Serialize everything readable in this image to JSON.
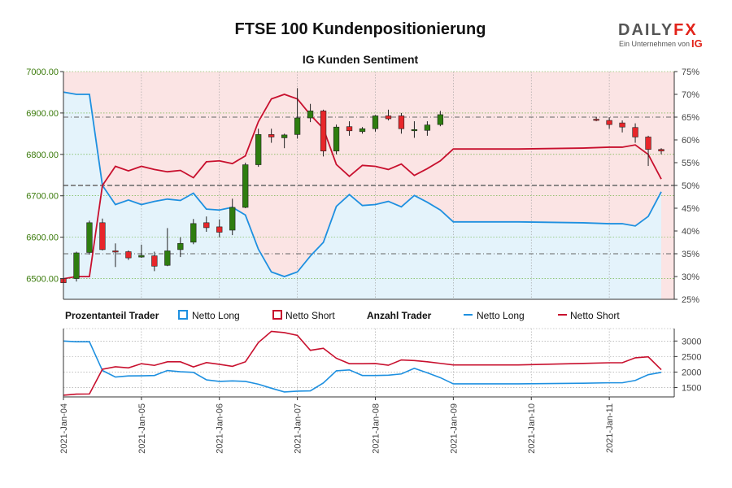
{
  "title": "FTSE 100 Kundenpositionierung",
  "subtitle": "IG Kunden Sentiment",
  "logo": {
    "brand_left": "DAILY",
    "brand_right": "FX",
    "tagline": "Ein Unternehmen von",
    "ig": "IG"
  },
  "legend": {
    "percent_heading": "Prozentanteil Trader",
    "count_heading": "Anzahl Trader",
    "netto_long": "Netto Long",
    "netto_short": "Netto Short"
  },
  "colors": {
    "long": "#1e90e0",
    "short": "#c8102e",
    "candle_up": "#2e7d0f",
    "candle_down": "#e8262a",
    "long_fill": "#e4f3fb",
    "short_fill": "#fbe4e4"
  },
  "chart_data": [
    {
      "type": "candlestick",
      "price_axis": {
        "ticks": [
          "6500.00",
          "6600.00",
          "6700.00",
          "6800.00",
          "6900.00",
          "7000.00"
        ],
        "range": [
          6450,
          7000
        ]
      },
      "percent_axis": {
        "ticks": [
          "25%",
          "30%",
          "35%",
          "40%",
          "45%",
          "50%",
          "55%",
          "60%",
          "65%",
          "70%",
          "75%"
        ],
        "range": [
          25,
          75
        ]
      },
      "reference_lines_percent": [
        50,
        65,
        35
      ],
      "x_range": [
        0,
        47
      ],
      "x_ticks": [
        {
          "label": "2021-Jan-04",
          "x": 0
        },
        {
          "label": "2021-Jan-05",
          "x": 6
        },
        {
          "label": "2021-Jan-06",
          "x": 12
        },
        {
          "label": "2021-Jan-07",
          "x": 18
        },
        {
          "label": "2021-Jan-08",
          "x": 24
        },
        {
          "label": "2021-Jan-09",
          "x": 30
        },
        {
          "label": "2021-Jan-10",
          "x": 36
        },
        {
          "label": "2021-Jan-11",
          "x": 42
        }
      ],
      "candles": [
        {
          "x": 0,
          "o": 6500,
          "h": 6505,
          "l": 6455,
          "c": 6490
        },
        {
          "x": 1,
          "o": 6500,
          "h": 6565,
          "l": 6493,
          "c": 6562
        },
        {
          "x": 2,
          "o": 6563,
          "h": 6640,
          "l": 6558,
          "c": 6635
        },
        {
          "x": 3,
          "o": 6635,
          "h": 6645,
          "l": 6568,
          "c": 6570
        },
        {
          "x": 4,
          "o": 6567,
          "h": 6585,
          "l": 6528,
          "c": 6566
        },
        {
          "x": 5,
          "o": 6565,
          "h": 6568,
          "l": 6545,
          "c": 6550
        },
        {
          "x": 6,
          "o": 6552,
          "h": 6582,
          "l": 6550,
          "c": 6556
        },
        {
          "x": 7,
          "o": 6555,
          "h": 6565,
          "l": 6518,
          "c": 6530
        },
        {
          "x": 8,
          "o": 6532,
          "h": 6622,
          "l": 6530,
          "c": 6567
        },
        {
          "x": 9,
          "o": 6570,
          "h": 6600,
          "l": 6552,
          "c": 6585
        },
        {
          "x": 10,
          "o": 6588,
          "h": 6644,
          "l": 6583,
          "c": 6633
        },
        {
          "x": 11,
          "o": 6635,
          "h": 6650,
          "l": 6613,
          "c": 6623
        },
        {
          "x": 12,
          "o": 6625,
          "h": 6643,
          "l": 6600,
          "c": 6612
        },
        {
          "x": 13,
          "o": 6617,
          "h": 6693,
          "l": 6605,
          "c": 6672
        },
        {
          "x": 14,
          "o": 6672,
          "h": 6780,
          "l": 6670,
          "c": 6775
        },
        {
          "x": 15,
          "o": 6775,
          "h": 6862,
          "l": 6770,
          "c": 6848
        },
        {
          "x": 16,
          "o": 6848,
          "h": 6862,
          "l": 6828,
          "c": 6842
        },
        {
          "x": 17,
          "o": 6840,
          "h": 6850,
          "l": 6815,
          "c": 6847
        },
        {
          "x": 18,
          "o": 6848,
          "h": 6960,
          "l": 6838,
          "c": 6888
        },
        {
          "x": 19,
          "o": 6888,
          "h": 6922,
          "l": 6878,
          "c": 6905
        },
        {
          "x": 20,
          "o": 6905,
          "h": 6908,
          "l": 6795,
          "c": 6808
        },
        {
          "x": 21,
          "o": 6808,
          "h": 6872,
          "l": 6800,
          "c": 6866
        },
        {
          "x": 22,
          "o": 6867,
          "h": 6880,
          "l": 6845,
          "c": 6857
        },
        {
          "x": 23,
          "o": 6855,
          "h": 6866,
          "l": 6850,
          "c": 6862
        },
        {
          "x": 24,
          "o": 6862,
          "h": 6895,
          "l": 6855,
          "c": 6893
        },
        {
          "x": 25,
          "o": 6893,
          "h": 6908,
          "l": 6882,
          "c": 6886
        },
        {
          "x": 26,
          "o": 6893,
          "h": 6900,
          "l": 6850,
          "c": 6862
        },
        {
          "x": 27,
          "o": 6860,
          "h": 6880,
          "l": 6840,
          "c": 6860
        },
        {
          "x": 28,
          "o": 6858,
          "h": 6880,
          "l": 6845,
          "c": 6871
        },
        {
          "x": 29,
          "o": 6872,
          "h": 6905,
          "l": 6868,
          "c": 6896
        },
        {
          "x": 41,
          "o": 6885,
          "h": 6890,
          "l": 6880,
          "c": 6884
        },
        {
          "x": 42,
          "o": 6882,
          "h": 6890,
          "l": 6862,
          "c": 6872
        },
        {
          "x": 43,
          "o": 6876,
          "h": 6882,
          "l": 6853,
          "c": 6866
        },
        {
          "x": 44,
          "o": 6865,
          "h": 6875,
          "l": 6828,
          "c": 6842
        },
        {
          "x": 45,
          "o": 6842,
          "h": 6845,
          "l": 6772,
          "c": 6812
        },
        {
          "x": 46,
          "o": 6812,
          "h": 6815,
          "l": 6800,
          "c": 6808
        }
      ],
      "long_percent": {
        "x": [
          0,
          1,
          2,
          3,
          4,
          5,
          6,
          7,
          8,
          9,
          10,
          11,
          12,
          13,
          14,
          15,
          16,
          17,
          18,
          19,
          20,
          21,
          22,
          23,
          24,
          25,
          26,
          27,
          28,
          29,
          30,
          35,
          40,
          42,
          43,
          44,
          45,
          46
        ],
        "y": [
          70.5,
          70,
          70,
          50,
          45.8,
          46.8,
          45.8,
          46.5,
          47,
          46.7,
          48.3,
          44.8,
          44.6,
          45.2,
          43.5,
          36,
          31,
          30,
          31,
          34.5,
          37.5,
          45.4,
          48,
          45.6,
          45.8,
          46.5,
          45.3,
          47.8,
          46.3,
          44.6,
          42,
          42,
          41.8,
          41.6,
          41.6,
          41.1,
          43.2,
          48.6
        ]
      },
      "short_percent_derived": "100 - long_percent"
    },
    {
      "type": "line",
      "y_ticks": [
        "1500",
        "2000",
        "2500",
        "3000"
      ],
      "y_range": [
        1200,
        3400
      ],
      "x": [
        0,
        1,
        2,
        3,
        4,
        5,
        6,
        7,
        8,
        9,
        10,
        11,
        12,
        13,
        14,
        15,
        16,
        17,
        18,
        19,
        20,
        21,
        22,
        23,
        24,
        25,
        26,
        27,
        28,
        29,
        30,
        35,
        40,
        42,
        43,
        44,
        45,
        46
      ],
      "series": [
        {
          "name": "Netto Long",
          "values": [
            3000,
            2975,
            2975,
            2050,
            1840,
            1875,
            1880,
            1890,
            2050,
            2010,
            1990,
            1750,
            1700,
            1715,
            1700,
            1610,
            1480,
            1360,
            1385,
            1395,
            1650,
            2040,
            2070,
            1890,
            1890,
            1900,
            1940,
            2120,
            1975,
            1820,
            1620,
            1620,
            1640,
            1655,
            1655,
            1730,
            1915,
            1990
          ]
        },
        {
          "name": "Netto Short",
          "values": [
            1255,
            1290,
            1295,
            2090,
            2170,
            2135,
            2270,
            2215,
            2330,
            2330,
            2165,
            2305,
            2250,
            2185,
            2330,
            2950,
            3310,
            3270,
            3180,
            2700,
            2765,
            2445,
            2270,
            2270,
            2275,
            2220,
            2390,
            2370,
            2330,
            2280,
            2230,
            2230,
            2280,
            2300,
            2300,
            2460,
            2490,
            2075
          ]
        }
      ]
    }
  ]
}
